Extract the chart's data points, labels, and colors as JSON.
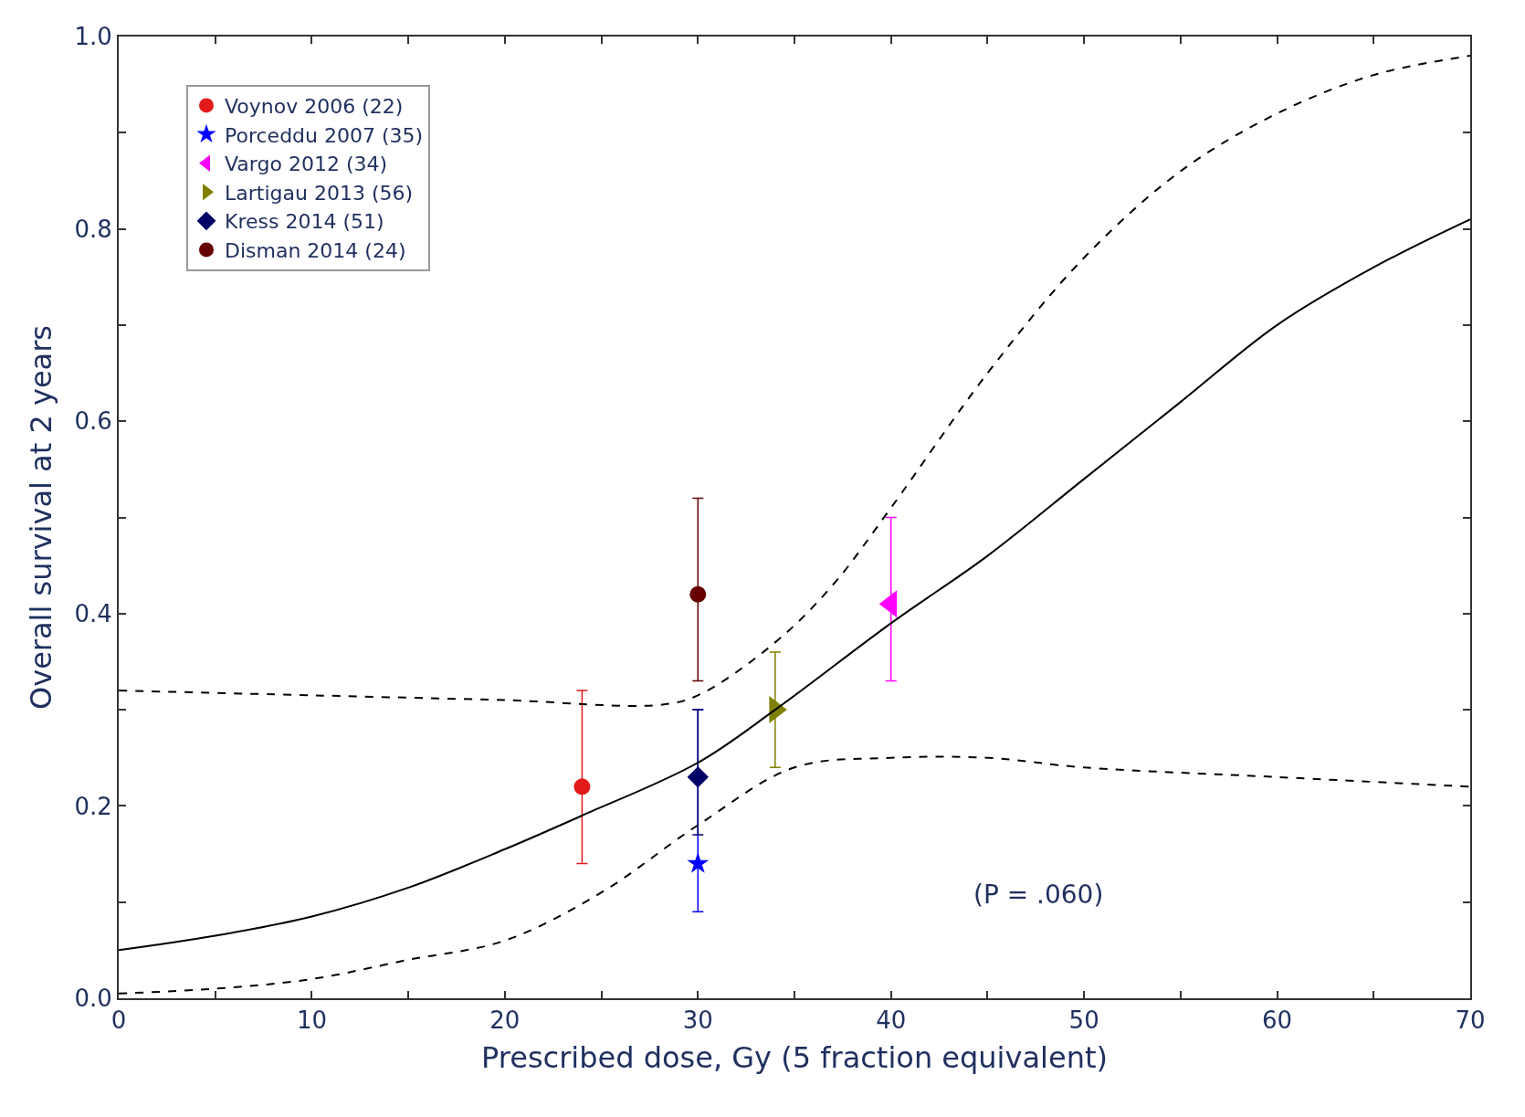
{
  "chart_data": {
    "type": "scatter",
    "xlabel": "Prescribed dose, Gy (5 fraction equivalent)",
    "ylabel": "Overall survival at 2 years",
    "xlim": [
      0,
      70
    ],
    "ylim": [
      0,
      1.0
    ],
    "xticks": [
      0,
      {
        "value": 5,
        "label": null
      },
      10,
      {
        "value": 15,
        "label": null
      },
      20,
      {
        "value": 25,
        "label": null
      },
      30,
      {
        "value": 35,
        "label": null
      },
      40,
      {
        "value": 45,
        "label": null
      },
      50,
      {
        "value": 55,
        "label": null
      },
      60,
      {
        "value": 65,
        "label": null
      },
      70
    ],
    "yticks": [
      {
        "value": 0,
        "label": "0.0"
      },
      {
        "value": 0.1,
        "label": null
      },
      0.2,
      {
        "value": 0.3,
        "label": null
      },
      0.4,
      {
        "value": 0.5,
        "label": null
      },
      0.6,
      {
        "value": 0.7,
        "label": null
      },
      0.8,
      {
        "value": 0.9,
        "label": null
      },
      {
        "value": 1.0,
        "label": "1.0"
      }
    ],
    "legend": "top left",
    "annotations": [
      "(P = .060)"
    ],
    "series": [
      {
        "name": "Voynov 2006 (22)",
        "color": "#e31a1c",
        "marker": "circle",
        "x": [
          24
        ],
        "values": [
          0.22
        ],
        "errors": [
          [
            0.14,
            0.32
          ]
        ]
      },
      {
        "name": "Porceddu 2007 (35)",
        "color": "#0000ff",
        "marker": "star",
        "x": [
          30
        ],
        "values": [
          0.14
        ],
        "errors": [
          [
            0.09,
            0.3
          ]
        ]
      },
      {
        "name": "Vargo 2012 (34)",
        "color": "#ff00ff",
        "marker": "triangle-left",
        "x": [
          40
        ],
        "values": [
          0.41
        ],
        "errors": [
          [
            0.33,
            0.5
          ]
        ]
      },
      {
        "name": "Lartigau 2013 (56)",
        "color": "#808000",
        "marker": "triangle-right",
        "x": [
          34
        ],
        "values": [
          0.3
        ],
        "errors": [
          [
            0.24,
            0.36
          ]
        ]
      },
      {
        "name": "Kress 2014 (51)",
        "color": "#000066",
        "marker": "diamond",
        "x": [
          30
        ],
        "values": [
          0.23
        ],
        "errors": [
          [
            0.17,
            0.3
          ]
        ]
      },
      {
        "name": "Disman 2014 (24)",
        "color": "#660000",
        "marker": "circle",
        "x": [
          30
        ],
        "values": [
          0.42
        ],
        "errors": [
          [
            0.33,
            0.52
          ]
        ]
      },
      {
        "type": "line",
        "color": "#000000",
        "line_style": "solid",
        "marker": "none",
        "x": [
          0,
          5,
          10,
          15,
          20,
          24,
          30,
          34,
          40,
          45,
          50,
          55,
          60,
          65,
          70
        ],
        "values": [
          0.05,
          0.065,
          0.085,
          0.115,
          0.155,
          0.19,
          0.245,
          0.3,
          0.39,
          0.46,
          0.54,
          0.62,
          0.7,
          0.76,
          0.81
        ]
      },
      {
        "type": "line",
        "color": "#000000",
        "line_style": "dashed",
        "marker": "none",
        "x": [
          0,
          10,
          20,
          28,
          30,
          34,
          37,
          40,
          45,
          50,
          55,
          60,
          65,
          70
        ],
        "values": [
          0.32,
          0.315,
          0.31,
          0.305,
          0.315,
          0.37,
          0.43,
          0.51,
          0.65,
          0.77,
          0.86,
          0.92,
          0.96,
          0.98
        ]
      },
      {
        "type": "line",
        "color": "#000000",
        "line_style": "dashed",
        "marker": "none",
        "x": [
          0,
          5,
          10,
          15,
          20,
          25,
          30,
          35,
          40,
          45,
          50,
          60,
          70
        ],
        "values": [
          0.005,
          0.01,
          0.02,
          0.04,
          0.06,
          0.11,
          0.18,
          0.24,
          0.25,
          0.25,
          0.24,
          0.23,
          0.22
        ]
      }
    ]
  }
}
